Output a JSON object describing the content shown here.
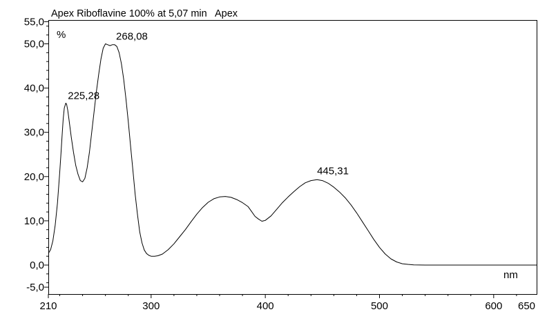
{
  "chart_data": {
    "type": "line",
    "title": "Apex Riboflavine 100% at 5,07 min   Apex",
    "xlabel": "nm",
    "ylabel": "%",
    "xlim": [
      210,
      650
    ],
    "ylim": [
      -5,
      55
    ],
    "x_ticks": [
      210,
      300,
      400,
      500,
      600,
      650
    ],
    "x_tick_labels": [
      "210",
      "300",
      "400",
      "500",
      "600",
      "650"
    ],
    "y_ticks": [
      55,
      50,
      40,
      30,
      20,
      10,
      0,
      -5
    ],
    "y_tick_labels": [
      "55,0",
      "50,0",
      "40,0",
      "30,0",
      "20,0",
      "10,0",
      "0,0",
      "-5,0"
    ],
    "grid": false,
    "line_color": "#000000",
    "series": [
      {
        "x": [
          210,
          212,
          214,
          216,
          218,
          220,
          221,
          222,
          223,
          224,
          225.28,
          226,
          227,
          228,
          230,
          232,
          234,
          236,
          238,
          240,
          242,
          244,
          246,
          248,
          250,
          252,
          254,
          256,
          258,
          260,
          262,
          264,
          266,
          268.08,
          270,
          272,
          274,
          276,
          278,
          280,
          282,
          284,
          286,
          288,
          290,
          292,
          294,
          296,
          298,
          300,
          303,
          306,
          310,
          315,
          320,
          325,
          330,
          335,
          340,
          345,
          350,
          355,
          360,
          365,
          370,
          375,
          380,
          385,
          388,
          391,
          394,
          397,
          400,
          405,
          410,
          415,
          420,
          425,
          430,
          435,
          440,
          445.31,
          450,
          455,
          460,
          465,
          470,
          475,
          480,
          485,
          490,
          495,
          500,
          505,
          510,
          515,
          520,
          525,
          530,
          540,
          550,
          560,
          580,
          600,
          620,
          640,
          650
        ],
        "y": [
          2.6,
          3.5,
          5.5,
          9,
          14,
          21,
          25,
          29,
          33,
          35.5,
          36.6,
          36.3,
          35,
          33,
          29,
          25.5,
          22.5,
          20.5,
          19.1,
          18.8,
          19.6,
          22,
          25.5,
          30,
          34.5,
          39,
          43,
          46.5,
          49,
          50,
          49.8,
          49.6,
          49.8,
          49.8,
          49.4,
          48,
          45.5,
          42,
          37.5,
          32.5,
          27,
          21.5,
          16,
          11.5,
          7.5,
          5,
          3.4,
          2.6,
          2.2,
          2.0,
          2.0,
          2.1,
          2.5,
          3.5,
          4.8,
          6.4,
          8,
          9.8,
          11.5,
          13,
          14.2,
          15,
          15.4,
          15.5,
          15.3,
          14.8,
          14.1,
          13.2,
          12.1,
          11,
          10.4,
          9.9,
          10.1,
          11.1,
          12.6,
          14.1,
          15.4,
          16.6,
          17.7,
          18.6,
          19.1,
          19.3,
          19.1,
          18.5,
          17.6,
          16.5,
          15.2,
          13.6,
          11.8,
          9.8,
          7.8,
          5.8,
          4,
          2.5,
          1.4,
          0.7,
          0.3,
          0.15,
          0.05,
          0,
          0,
          0,
          0,
          0,
          0,
          0,
          0
        ]
      }
    ],
    "annotations": [
      {
        "label": "225,28",
        "x": 225.28,
        "y": 36.6
      },
      {
        "label": "268,08",
        "x": 268.08,
        "y": 50
      },
      {
        "label": "445,31",
        "x": 445.31,
        "y": 19.3
      }
    ]
  }
}
